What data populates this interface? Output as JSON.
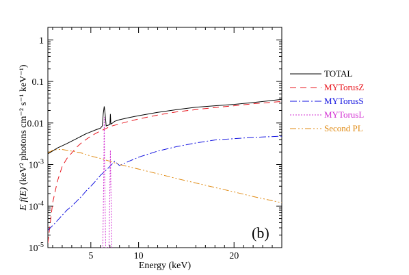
{
  "chart_data": {
    "type": "line",
    "title": "",
    "xlabel": "Energy (keV)",
    "ylabel_prefix": "E ",
    "ylabel_func": "f(E)",
    "ylabel_rest": " (keV² photons cm⁻² s⁻¹ keV⁻¹)",
    "xlim": [
      0.5,
      25
    ],
    "ylim": [
      1e-05,
      2
    ],
    "yscale": "log",
    "panel_label": "(b)",
    "legend_position": "right",
    "x_ticks": [
      {
        "value": 5,
        "label": "5"
      },
      {
        "value": 10,
        "label": "10"
      },
      {
        "value": 20,
        "label": "20"
      }
    ],
    "y_ticks": [
      {
        "value": 1e-05,
        "base": "10",
        "exp": "-5"
      },
      {
        "value": 0.0001,
        "base": "10",
        "exp": "-4"
      },
      {
        "value": 0.001,
        "base": "10",
        "exp": "-3"
      },
      {
        "value": 0.01,
        "label": "0.01"
      },
      {
        "value": 0.1,
        "label": "0.1"
      },
      {
        "value": 1,
        "label": "1"
      }
    ],
    "series": [
      {
        "name": "TOTAL",
        "color": "#000000",
        "dash": "",
        "x": [
          0.5,
          1.5,
          2.5,
          3.5,
          4.5,
          5.5,
          6.0,
          6.2,
          6.3,
          6.4,
          6.5,
          6.6,
          6.8,
          7.0,
          7.05,
          7.1,
          7.2,
          7.5,
          8,
          9,
          10,
          12,
          14,
          16,
          18,
          20,
          22,
          25
        ],
        "y": [
          0.0018,
          0.0025,
          0.0032,
          0.0042,
          0.0055,
          0.0068,
          0.0075,
          0.0085,
          0.017,
          0.025,
          0.016,
          0.0085,
          0.0088,
          0.0092,
          0.0165,
          0.0094,
          0.0097,
          0.011,
          0.012,
          0.0135,
          0.015,
          0.018,
          0.021,
          0.024,
          0.026,
          0.028,
          0.031,
          0.037
        ]
      },
      {
        "name": "MYTorusZ",
        "color": "#e8141c",
        "dash": "9,6",
        "x": [
          0.5,
          1.0,
          1.5,
          2.0,
          2.5,
          3.0,
          3.5,
          4.0,
          4.5,
          5.0,
          5.5,
          6.0,
          6.5,
          7.0,
          8,
          9,
          10,
          12,
          14,
          16,
          18,
          20,
          22,
          25
        ],
        "y": [
          1.3e-05,
          0.00012,
          0.0004,
          0.0009,
          0.0014,
          0.0019,
          0.0026,
          0.0033,
          0.004,
          0.0048,
          0.0056,
          0.0064,
          0.0072,
          0.0082,
          0.0095,
          0.011,
          0.0125,
          0.0155,
          0.0185,
          0.021,
          0.0235,
          0.026,
          0.029,
          0.033
        ]
      },
      {
        "name": "MYTorusS",
        "color": "#1212e0",
        "dash": "10,3,2,3",
        "x": [
          0.5,
          1.0,
          1.5,
          2.0,
          2.5,
          3.0,
          3.5,
          4.0,
          4.5,
          5.0,
          5.5,
          6.0,
          6.5,
          7.0,
          7.5,
          8,
          9,
          10,
          12,
          14,
          16,
          18,
          20,
          22,
          25
        ],
        "y": [
          2.6e-05,
          3.4e-05,
          4.5e-05,
          6e-05,
          8e-05,
          0.0001,
          0.00013,
          0.00017,
          0.00023,
          0.0003,
          0.0004,
          0.00055,
          0.0007,
          0.0009,
          0.0012,
          0.00095,
          0.0012,
          0.0015,
          0.0021,
          0.0027,
          0.0033,
          0.0039,
          0.0042,
          0.0045,
          0.0048
        ]
      },
      {
        "name": "MYTorusL",
        "color": "#d22fd2",
        "dash": "2,2",
        "x": [
          6.1,
          6.25,
          6.35,
          6.4,
          6.45,
          6.55,
          6.7,
          6.9,
          7.0,
          7.05,
          7.1,
          7.2,
          7.35
        ],
        "y": [
          1e-05,
          1e-05,
          0.0005,
          0.014,
          0.0005,
          1e-05,
          1e-05,
          1e-05,
          0.0003,
          0.0022,
          0.0003,
          1e-05,
          1e-05
        ]
      },
      {
        "name": "Second PL",
        "color": "#e08a12",
        "dash": "9,3,2,3,2,3",
        "x": [
          0.5,
          1.0,
          1.5,
          2.0,
          2.5,
          3.0,
          4,
          5,
          6,
          7,
          8,
          10,
          12,
          14,
          16,
          18,
          20,
          22,
          25
        ],
        "y": [
          0.0019,
          0.0022,
          0.0023,
          0.0023,
          0.0022,
          0.0021,
          0.0019,
          0.0016,
          0.0014,
          0.0012,
          0.001,
          0.00078,
          0.0006,
          0.00046,
          0.00036,
          0.00028,
          0.00022,
          0.00017,
          0.00012
        ]
      }
    ]
  }
}
